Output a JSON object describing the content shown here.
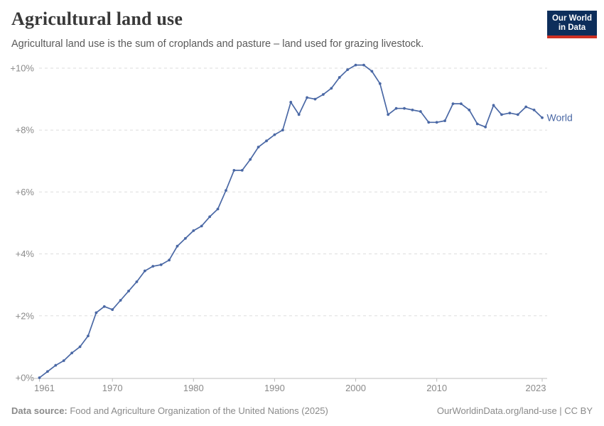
{
  "header": {
    "title": "Agricultural land use",
    "subtitle": "Agricultural land use is the sum of croplands and pasture – land used for grazing livestock.",
    "logo": {
      "line1": "Our World",
      "line2": "in Data"
    }
  },
  "chart_data": {
    "type": "line",
    "title": "Agricultural land use",
    "xlabel": "",
    "ylabel": "",
    "xlim": [
      1961,
      2023
    ],
    "ylim": [
      0,
      10
    ],
    "grid": "dashed horizontal gridlines at each y tick",
    "legend_position": "label at end of line",
    "markers": true,
    "x_ticks": [
      1961,
      1970,
      1980,
      1990,
      2000,
      2010,
      2023
    ],
    "y_ticks": [
      0,
      2,
      4,
      6,
      8,
      10
    ],
    "y_tick_labels": [
      "+0%",
      "+2%",
      "+4%",
      "+6%",
      "+8%",
      "+10%"
    ],
    "series": [
      {
        "name": "World",
        "unit": "% change since 1961",
        "x": [
          1961,
          1962,
          1963,
          1964,
          1965,
          1966,
          1967,
          1968,
          1969,
          1970,
          1971,
          1972,
          1973,
          1974,
          1975,
          1976,
          1977,
          1978,
          1979,
          1980,
          1981,
          1982,
          1983,
          1984,
          1985,
          1986,
          1987,
          1988,
          1989,
          1990,
          1991,
          1992,
          1993,
          1994,
          1995,
          1996,
          1997,
          1998,
          1999,
          2000,
          2001,
          2002,
          2003,
          2004,
          2005,
          2006,
          2007,
          2008,
          2009,
          2010,
          2011,
          2012,
          2013,
          2014,
          2015,
          2016,
          2017,
          2018,
          2019,
          2020,
          2021,
          2022,
          2023
        ],
        "values": [
          0,
          0.2,
          0.4,
          0.55,
          0.8,
          1.0,
          1.35,
          2.1,
          2.3,
          2.2,
          2.5,
          2.8,
          3.1,
          3.45,
          3.6,
          3.65,
          3.8,
          4.25,
          4.5,
          4.75,
          4.9,
          5.2,
          5.45,
          6.05,
          6.7,
          6.7,
          7.05,
          7.45,
          7.65,
          7.85,
          8.0,
          8.9,
          8.5,
          9.05,
          9.0,
          9.15,
          9.35,
          9.7,
          9.95,
          10.1,
          10.1,
          9.9,
          9.5,
          8.5,
          8.7,
          8.7,
          8.65,
          8.6,
          8.25,
          8.25,
          8.3,
          8.85,
          8.85,
          8.65,
          8.2,
          8.1,
          8.8,
          8.5,
          8.55,
          8.5,
          8.75,
          8.65,
          8.4
        ]
      }
    ]
  },
  "colors": {
    "line": "#4a68a5",
    "entity_label": "#4a68a5",
    "grid": "#dddddd",
    "axis": "#bcbcbc",
    "tick_text": "#8a8a8a",
    "logo_bg": "#0d2e5b",
    "logo_red": "#cd3023"
  },
  "footer": {
    "source_label": "Data source:",
    "source_text": " Food and Agriculture Organization of the United Nations (2025)",
    "attribution": "OurWorldinData.org/land-use | CC BY"
  }
}
